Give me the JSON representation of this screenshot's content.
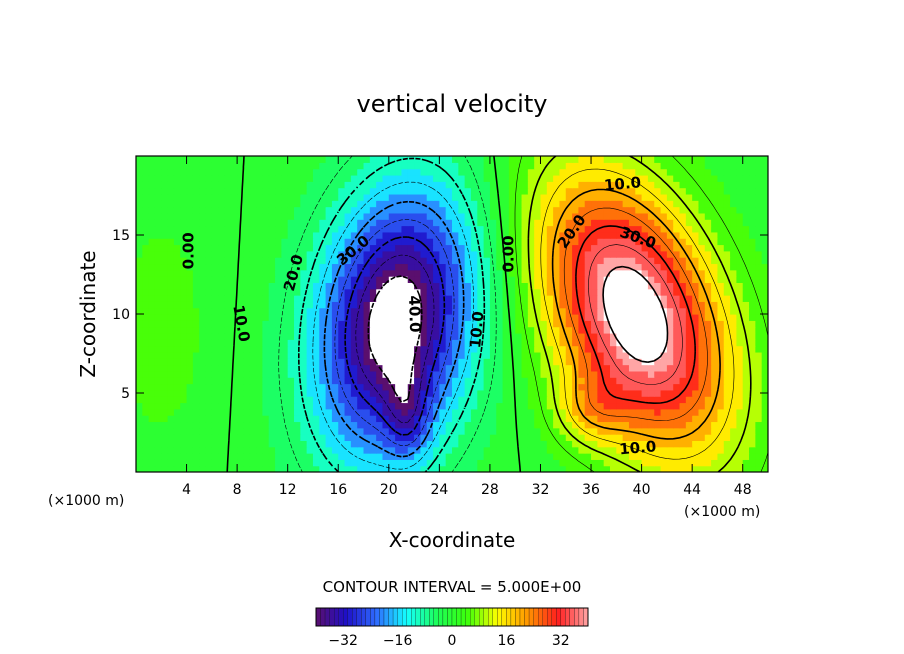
{
  "chart_data": {
    "type": "heatmap",
    "title": "vertical velocity",
    "xlabel": "X-coordinate",
    "ylabel": "Z-coordinate",
    "x_unit_left": "(×1000 m)",
    "x_unit_right": "(×1000 m)",
    "xlim": [
      0,
      50
    ],
    "ylim": [
      0,
      20
    ],
    "x_ticks": [
      4,
      8,
      12,
      16,
      20,
      24,
      28,
      32,
      36,
      40,
      44,
      48
    ],
    "y_ticks": [
      5,
      10,
      15
    ],
    "contour_interval_text": "CONTOUR INTERVAL = 5.000E+00",
    "contour_interval": 5,
    "colorbar": {
      "range": [
        -40,
        40
      ],
      "ticks": [
        -32,
        -16,
        0,
        16,
        32
      ],
      "tick_labels": [
        "−32",
        "−16",
        "0",
        "16",
        "32"
      ]
    },
    "contour_labels": [
      "0.00",
      "10.0",
      "20.0",
      "30.0",
      "40.0",
      "0.00",
      "10.0",
      "10.0",
      "20.0",
      "30.0",
      "10.0"
    ],
    "fields": {
      "downdraft": {
        "center_x": 20.5,
        "center_z": 9.5,
        "min_value": -45,
        "white_region": "below -40"
      },
      "updraft": {
        "center_x": 39.5,
        "center_z": 10,
        "max_value": 45,
        "white_region": "above 40"
      }
    },
    "colormap_stops": [
      "#5a0f6e",
      "#1e0fc8",
      "#2f6bff",
      "#14ffff",
      "#1cff5a",
      "#3cff0a",
      "#ffff00",
      "#ff9600",
      "#ff1e1e",
      "#ffa5a5"
    ],
    "background_color": "#3cff14"
  }
}
